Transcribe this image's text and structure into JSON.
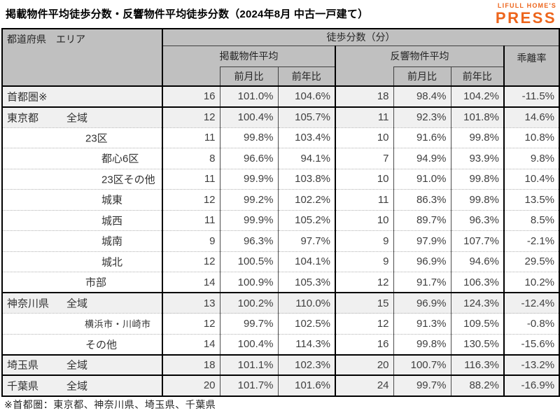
{
  "title": "掲載物件平均徒歩分数・反響物件平均徒歩分数（2024年8月 中古一戸建て）",
  "logo": {
    "line1": "LIFULL HOME'S",
    "line2": "PRESS",
    "color": "#ED651C"
  },
  "footnote": "※首都圏：東京都、神奈川県、埼玉県、千葉県",
  "colors": {
    "accent_orange": "#ED651C",
    "header_bg": "#C0C0C0",
    "shaded_row_bg": "#F0F0F0",
    "border_black": "#000000"
  },
  "chart_data": {
    "type": "table",
    "title": "掲載物件平均徒歩分数・反響物件平均徒歩分数（2024年8月 中古一戸建て）",
    "headers": {
      "area": "都道府県　エリア",
      "walk_minutes": "徒歩分数（分）",
      "listed_avg": "掲載物件平均",
      "response_avg": "反響物件平均",
      "deviation_rate": "乖離率",
      "mom": "前月比",
      "yoy": "前年比"
    },
    "rows": [
      {
        "prefecture": "首都圏※",
        "area": "",
        "level": 0,
        "shaded": true,
        "group_end": true,
        "small": false,
        "listed_avg": "16",
        "listed_mom": "101.0%",
        "listed_yoy": "104.6%",
        "response_avg": "18",
        "response_mom": "98.4%",
        "response_yoy": "104.2%",
        "deviation": "-11.5%"
      },
      {
        "prefecture": "東京都",
        "area": "全域",
        "level": 1,
        "shaded": true,
        "group_end": false,
        "small": false,
        "listed_avg": "12",
        "listed_mom": "100.4%",
        "listed_yoy": "105.7%",
        "response_avg": "11",
        "response_mom": "92.3%",
        "response_yoy": "101.8%",
        "deviation": "14.6%"
      },
      {
        "prefecture": "",
        "area": "23区",
        "level": 2,
        "shaded": false,
        "group_end": false,
        "small": false,
        "listed_avg": "11",
        "listed_mom": "99.8%",
        "listed_yoy": "103.4%",
        "response_avg": "10",
        "response_mom": "91.6%",
        "response_yoy": "99.8%",
        "deviation": "10.8%"
      },
      {
        "prefecture": "",
        "area": "都心6区",
        "level": 3,
        "shaded": false,
        "group_end": false,
        "small": false,
        "listed_avg": "8",
        "listed_mom": "96.6%",
        "listed_yoy": "94.1%",
        "response_avg": "7",
        "response_mom": "94.9%",
        "response_yoy": "93.9%",
        "deviation": "9.8%"
      },
      {
        "prefecture": "",
        "area": "23区その他",
        "level": 3,
        "shaded": false,
        "group_end": false,
        "small": false,
        "listed_avg": "11",
        "listed_mom": "99.9%",
        "listed_yoy": "103.8%",
        "response_avg": "10",
        "response_mom": "91.0%",
        "response_yoy": "99.8%",
        "deviation": "10.4%"
      },
      {
        "prefecture": "",
        "area": "城東",
        "level": 3,
        "shaded": false,
        "group_end": false,
        "small": false,
        "listed_avg": "12",
        "listed_mom": "99.2%",
        "listed_yoy": "102.2%",
        "response_avg": "11",
        "response_mom": "86.3%",
        "response_yoy": "99.8%",
        "deviation": "13.5%"
      },
      {
        "prefecture": "",
        "area": "城西",
        "level": 3,
        "shaded": false,
        "group_end": false,
        "small": false,
        "listed_avg": "11",
        "listed_mom": "99.9%",
        "listed_yoy": "105.2%",
        "response_avg": "10",
        "response_mom": "89.7%",
        "response_yoy": "96.3%",
        "deviation": "8.5%"
      },
      {
        "prefecture": "",
        "area": "城南",
        "level": 3,
        "shaded": false,
        "group_end": false,
        "small": false,
        "listed_avg": "9",
        "listed_mom": "96.3%",
        "listed_yoy": "97.7%",
        "response_avg": "9",
        "response_mom": "97.9%",
        "response_yoy": "107.7%",
        "deviation": "-2.1%"
      },
      {
        "prefecture": "",
        "area": "城北",
        "level": 3,
        "shaded": false,
        "group_end": false,
        "small": false,
        "listed_avg": "12",
        "listed_mom": "100.5%",
        "listed_yoy": "104.1%",
        "response_avg": "9",
        "response_mom": "96.9%",
        "response_yoy": "94.6%",
        "deviation": "29.5%"
      },
      {
        "prefecture": "",
        "area": "市部",
        "level": 2,
        "shaded": false,
        "group_end": true,
        "small": false,
        "listed_avg": "14",
        "listed_mom": "100.9%",
        "listed_yoy": "105.3%",
        "response_avg": "12",
        "response_mom": "91.7%",
        "response_yoy": "106.3%",
        "deviation": "10.2%"
      },
      {
        "prefecture": "神奈川県",
        "area": "全域",
        "level": 1,
        "shaded": true,
        "group_end": false,
        "small": false,
        "listed_avg": "13",
        "listed_mom": "100.2%",
        "listed_yoy": "110.0%",
        "response_avg": "15",
        "response_mom": "96.9%",
        "response_yoy": "124.3%",
        "deviation": "-12.4%"
      },
      {
        "prefecture": "",
        "area": "横浜市・川崎市",
        "level": 2,
        "shaded": false,
        "group_end": false,
        "small": true,
        "listed_avg": "12",
        "listed_mom": "99.7%",
        "listed_yoy": "102.5%",
        "response_avg": "12",
        "response_mom": "91.3%",
        "response_yoy": "109.5%",
        "deviation": "-0.8%"
      },
      {
        "prefecture": "",
        "area": "その他",
        "level": 2,
        "shaded": false,
        "group_end": true,
        "small": false,
        "listed_avg": "14",
        "listed_mom": "100.4%",
        "listed_yoy": "114.3%",
        "response_avg": "16",
        "response_mom": "99.8%",
        "response_yoy": "130.5%",
        "deviation": "-15.6%"
      },
      {
        "prefecture": "埼玉県",
        "area": "全域",
        "level": 1,
        "shaded": true,
        "group_end": true,
        "small": false,
        "listed_avg": "18",
        "listed_mom": "101.1%",
        "listed_yoy": "102.3%",
        "response_avg": "20",
        "response_mom": "100.7%",
        "response_yoy": "116.3%",
        "deviation": "-13.2%"
      },
      {
        "prefecture": "千葉県",
        "area": "全域",
        "level": 1,
        "shaded": true,
        "group_end": true,
        "small": false,
        "listed_avg": "20",
        "listed_mom": "101.7%",
        "listed_yoy": "101.6%",
        "response_avg": "24",
        "response_mom": "99.7%",
        "response_yoy": "88.2%",
        "deviation": "-16.9%"
      }
    ]
  }
}
